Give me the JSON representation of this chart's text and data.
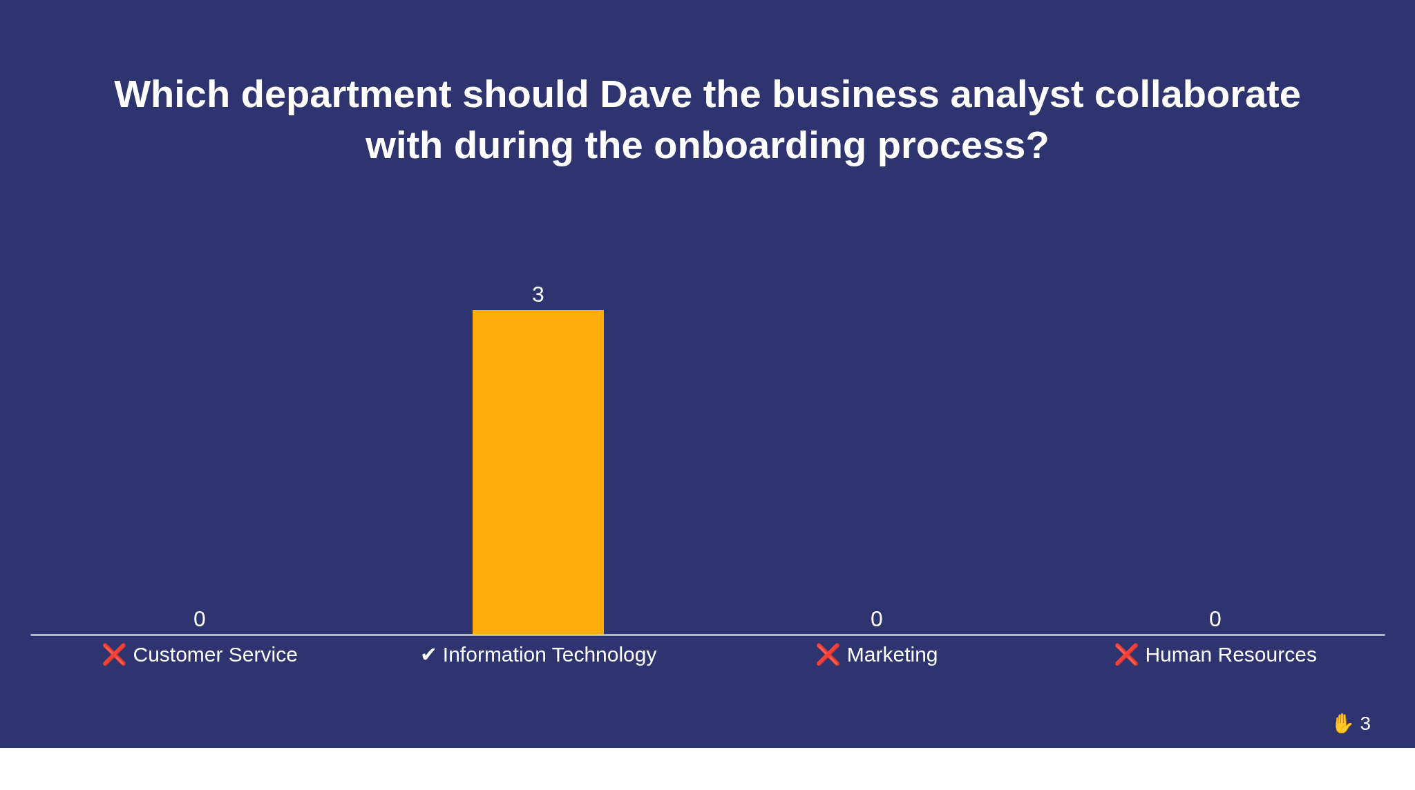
{
  "chart_data": {
    "type": "bar",
    "title": [
      "Which department should Dave the business analyst collaborate",
      "with during the onboarding process?"
    ],
    "categories": [
      "❌ Customer Service",
      "✔ Information Technology",
      "❌ Marketing",
      "❌ Human Resources"
    ],
    "values": [
      0,
      3,
      0,
      0
    ],
    "color": "#ffad0d",
    "data_labels": true,
    "grid": false,
    "annotations": [
      "✋ 3"
    ]
  }
}
